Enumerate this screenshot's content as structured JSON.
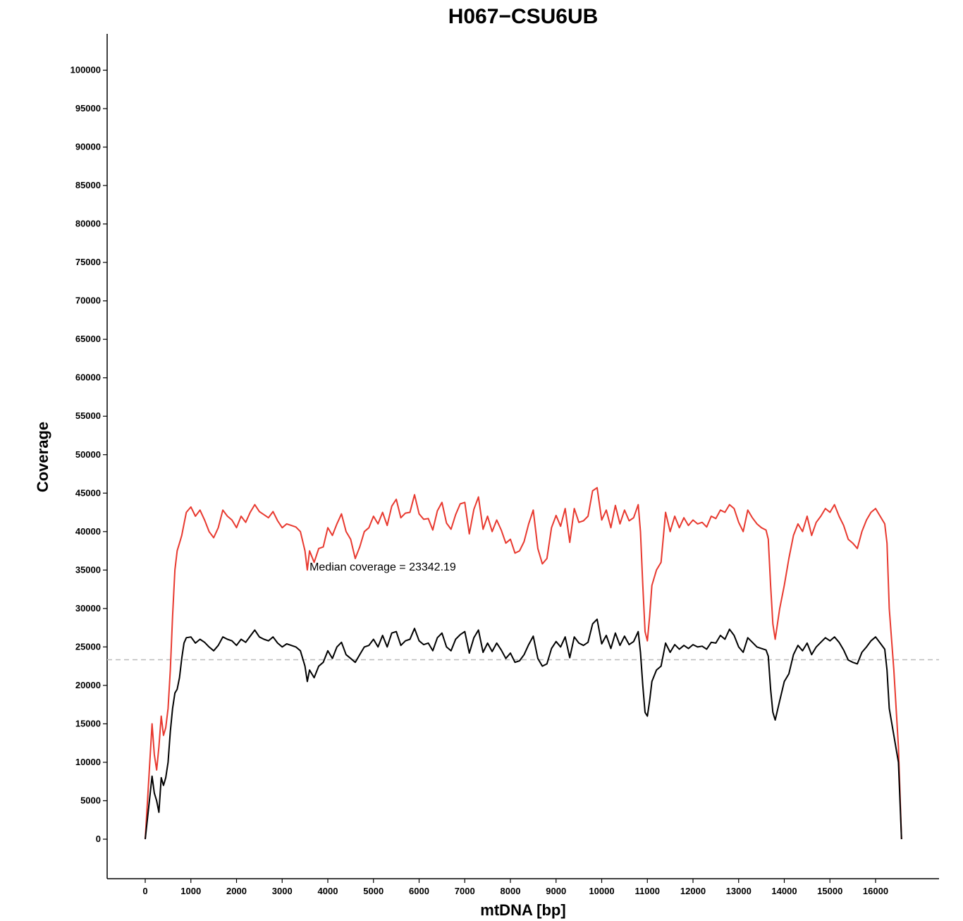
{
  "chart_data": {
    "type": "line",
    "title": "H067−CSU6UB",
    "xlabel": "mtDNA [bp]",
    "ylabel": "Coverage",
    "xlim": [
      -800,
      17600
    ],
    "ylim": [
      -5000,
      105000
    ],
    "x_ticks": [
      0,
      1000,
      2000,
      3000,
      4000,
      5000,
      6000,
      7000,
      8000,
      9000,
      10000,
      11000,
      12000,
      13000,
      14000,
      15000,
      16000
    ],
    "y_ticks": [
      0,
      5000,
      10000,
      15000,
      20000,
      25000,
      30000,
      35000,
      40000,
      45000,
      50000,
      55000,
      60000,
      65000,
      70000,
      75000,
      80000,
      85000,
      90000,
      95000,
      100000
    ],
    "grid": false,
    "legend": "none",
    "annotation": {
      "text": "Median coverage = 23342.19",
      "x": 3600,
      "y": 35500
    },
    "median_line": {
      "y": 23342.19,
      "style": "dashed",
      "color": "#bbbbbb"
    },
    "series": [
      {
        "color": "#e8392f",
        "x": [
          0,
          150,
          200,
          250,
          300,
          350,
          400,
          450,
          500,
          550,
          600,
          650,
          700,
          750,
          800,
          850,
          900,
          1000,
          1100,
          1200,
          1300,
          1400,
          1500,
          1600,
          1700,
          1800,
          1900,
          2000,
          2100,
          2200,
          2300,
          2400,
          2500,
          2600,
          2700,
          2800,
          2900,
          3000,
          3100,
          3200,
          3300,
          3400,
          3500,
          3550,
          3600,
          3700,
          3800,
          3900,
          4000,
          4100,
          4200,
          4300,
          4400,
          4500,
          4600,
          4700,
          4800,
          4900,
          5000,
          5100,
          5200,
          5300,
          5400,
          5500,
          5600,
          5700,
          5800,
          5900,
          6000,
          6100,
          6200,
          6300,
          6400,
          6500,
          6600,
          6700,
          6800,
          6900,
          7000,
          7100,
          7200,
          7300,
          7400,
          7500,
          7600,
          7700,
          7800,
          7900,
          8000,
          8100,
          8200,
          8300,
          8400,
          8500,
          8600,
          8700,
          8800,
          8900,
          9000,
          9100,
          9200,
          9300,
          9400,
          9500,
          9600,
          9700,
          9800,
          9900,
          10000,
          10100,
          10200,
          10300,
          10400,
          10500,
          10600,
          10700,
          10800,
          10850,
          10900,
          10950,
          11000,
          11050,
          11100,
          11200,
          11300,
          11400,
          11500,
          11600,
          11700,
          11800,
          11900,
          12000,
          12100,
          12200,
          12300,
          12400,
          12500,
          12600,
          12700,
          12800,
          12900,
          13000,
          13100,
          13200,
          13300,
          13400,
          13500,
          13600,
          13650,
          13700,
          13750,
          13800,
          13900,
          14000,
          14100,
          14200,
          14300,
          14400,
          14500,
          14600,
          14700,
          14800,
          14900,
          15000,
          15100,
          15200,
          15300,
          15400,
          15500,
          15600,
          15700,
          15800,
          15900,
          16000,
          16100,
          16200,
          16250,
          16300,
          16400,
          16500,
          16569
        ],
        "values": [
          0,
          15000,
          11000,
          9000,
          12000,
          16000,
          13500,
          14500,
          17000,
          22000,
          29000,
          35000,
          37500,
          38500,
          39500,
          41000,
          42500,
          43200,
          42000,
          42800,
          41500,
          40000,
          39200,
          40500,
          42800,
          42000,
          41500,
          40500,
          42000,
          41200,
          42500,
          43500,
          42600,
          42200,
          41800,
          42600,
          41400,
          40500,
          41000,
          40800,
          40600,
          40000,
          37500,
          35000,
          37500,
          36000,
          37800,
          38000,
          40500,
          39500,
          41000,
          42300,
          40000,
          39000,
          36500,
          38000,
          40000,
          40500,
          42000,
          41000,
          42500,
          40800,
          43300,
          44200,
          41800,
          42400,
          42500,
          44800,
          42300,
          41600,
          41700,
          40200,
          42700,
          43800,
          41100,
          40300,
          42200,
          43600,
          43800,
          39700,
          42900,
          44500,
          40300,
          42000,
          40000,
          41500,
          40200,
          38500,
          39000,
          37200,
          37500,
          38700,
          41000,
          42800,
          37800,
          35800,
          36500,
          40500,
          42100,
          40700,
          43000,
          38600,
          43000,
          41200,
          41400,
          42000,
          45300,
          45700,
          41500,
          42800,
          40500,
          43400,
          41000,
          42800,
          41400,
          41800,
          43500,
          40000,
          33000,
          27000,
          25800,
          29000,
          33000,
          35000,
          36000,
          42500,
          40000,
          42000,
          40500,
          41800,
          40800,
          41500,
          41000,
          41200,
          40600,
          42000,
          41700,
          42800,
          42500,
          43500,
          43000,
          41200,
          40000,
          42800,
          41800,
          41000,
          40500,
          40200,
          39000,
          33000,
          28000,
          26000,
          30000,
          33000,
          36500,
          39500,
          41000,
          40000,
          42000,
          39500,
          41200,
          42000,
          43000,
          42500,
          43500,
          42000,
          40800,
          39000,
          38500,
          37800,
          40000,
          41500,
          42500,
          43000,
          42000,
          41000,
          38500,
          30000,
          22000,
          12000,
          0
        ]
      },
      {
        "color": "#000000",
        "x": [
          0,
          150,
          200,
          250,
          300,
          350,
          400,
          450,
          500,
          550,
          600,
          650,
          700,
          750,
          800,
          850,
          900,
          1000,
          1100,
          1200,
          1300,
          1400,
          1500,
          1600,
          1700,
          1800,
          1900,
          2000,
          2100,
          2200,
          2300,
          2400,
          2500,
          2600,
          2700,
          2800,
          2900,
          3000,
          3100,
          3200,
          3300,
          3400,
          3500,
          3550,
          3600,
          3700,
          3800,
          3900,
          4000,
          4100,
          4200,
          4300,
          4400,
          4500,
          4600,
          4700,
          4800,
          4900,
          5000,
          5100,
          5200,
          5300,
          5400,
          5500,
          5600,
          5700,
          5800,
          5900,
          6000,
          6100,
          6200,
          6300,
          6400,
          6500,
          6600,
          6700,
          6800,
          6900,
          7000,
          7100,
          7200,
          7300,
          7400,
          7500,
          7600,
          7700,
          7800,
          7900,
          8000,
          8100,
          8200,
          8300,
          8400,
          8500,
          8600,
          8700,
          8800,
          8900,
          9000,
          9100,
          9200,
          9300,
          9400,
          9500,
          9600,
          9700,
          9800,
          9900,
          10000,
          10100,
          10200,
          10300,
          10400,
          10500,
          10600,
          10700,
          10800,
          10850,
          10900,
          10950,
          11000,
          11050,
          11100,
          11200,
          11300,
          11400,
          11500,
          11600,
          11700,
          11800,
          11900,
          12000,
          12100,
          12200,
          12300,
          12400,
          12500,
          12600,
          12700,
          12800,
          12900,
          13000,
          13100,
          13200,
          13300,
          13400,
          13500,
          13600,
          13650,
          13700,
          13750,
          13800,
          13900,
          14000,
          14100,
          14200,
          14300,
          14400,
          14500,
          14600,
          14700,
          14800,
          14900,
          15000,
          15100,
          15200,
          15300,
          15400,
          15500,
          15600,
          15700,
          15800,
          15900,
          16000,
          16100,
          16200,
          16250,
          16300,
          16400,
          16500,
          16569
        ],
        "values": [
          0,
          8200,
          6000,
          5000,
          3500,
          8000,
          7000,
          8000,
          10000,
          14000,
          17000,
          19000,
          19500,
          21000,
          23500,
          25500,
          26200,
          26300,
          25500,
          26000,
          25600,
          25000,
          24500,
          25200,
          26300,
          26000,
          25800,
          25200,
          26000,
          25600,
          26400,
          27200,
          26300,
          26000,
          25800,
          26300,
          25500,
          25000,
          25400,
          25200,
          25000,
          24500,
          22500,
          20500,
          22000,
          21000,
          22500,
          23000,
          24500,
          23500,
          25000,
          25600,
          24000,
          23500,
          23000,
          24000,
          25000,
          25200,
          26000,
          25000,
          26500,
          25000,
          26800,
          27000,
          25200,
          25800,
          26000,
          27400,
          25800,
          25300,
          25500,
          24500,
          26200,
          26800,
          25000,
          24500,
          26000,
          26600,
          27000,
          24200,
          26200,
          27200,
          24300,
          25500,
          24400,
          25500,
          24600,
          23500,
          24200,
          23000,
          23200,
          24000,
          25300,
          26400,
          23500,
          22500,
          22800,
          24800,
          25700,
          25000,
          26300,
          23600,
          26300,
          25500,
          25200,
          25600,
          28000,
          28600,
          25400,
          26500,
          24800,
          26800,
          25200,
          26400,
          25300,
          25700,
          27000,
          24300,
          20000,
          16500,
          16000,
          18000,
          20500,
          22000,
          22500,
          25500,
          24300,
          25300,
          24700,
          25200,
          24800,
          25300,
          25000,
          25100,
          24700,
          25600,
          25500,
          26500,
          26000,
          27300,
          26500,
          25000,
          24300,
          26200,
          25600,
          25000,
          24800,
          24600,
          23800,
          19500,
          16500,
          15500,
          18000,
          20500,
          21500,
          24000,
          25200,
          24500,
          25500,
          24000,
          25000,
          25600,
          26200,
          25800,
          26300,
          25600,
          24600,
          23300,
          23000,
          22800,
          24300,
          25000,
          25800,
          26300,
          25500,
          24700,
          22000,
          17000,
          13500,
          10000,
          0
        ]
      }
    ]
  }
}
